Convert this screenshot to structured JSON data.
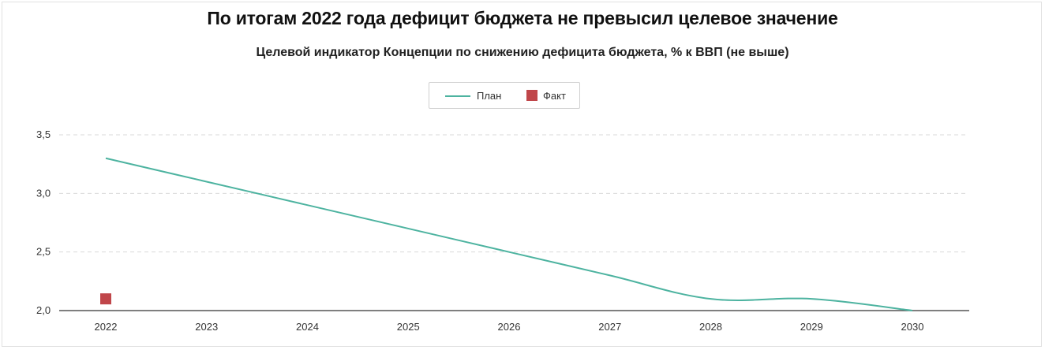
{
  "colors": {
    "plan": "#4db3a0",
    "fact": "#c0464a",
    "axis": "#555555",
    "grid": "#d9d9d9"
  },
  "chart_data": {
    "type": "line",
    "title": "По итогам 2022 года дефицит бюджета не превысил целевое значение",
    "subtitle": "Целевой индикатор Концепции по снижению дефицита бюджета, % к ВВП (не выше)",
    "x": [
      "2022",
      "2023",
      "2024",
      "2025",
      "2026",
      "2027",
      "2028",
      "2029",
      "2030"
    ],
    "y_ticks": [
      "2,0",
      "2,5",
      "3,0",
      "3,5"
    ],
    "y_tick_values": [
      2.0,
      2.5,
      3.0,
      3.5
    ],
    "ylim": [
      2.0,
      3.5
    ],
    "grid": true,
    "legend_position": "top-center",
    "series": [
      {
        "name": "План",
        "kind": "line",
        "values": [
          3.3,
          3.1,
          2.9,
          2.7,
          2.5,
          2.3,
          2.1,
          2.1,
          2.0
        ]
      },
      {
        "name": "Факт",
        "kind": "marker-square",
        "values": [
          2.1,
          null,
          null,
          null,
          null,
          null,
          null,
          null,
          null
        ]
      }
    ]
  }
}
